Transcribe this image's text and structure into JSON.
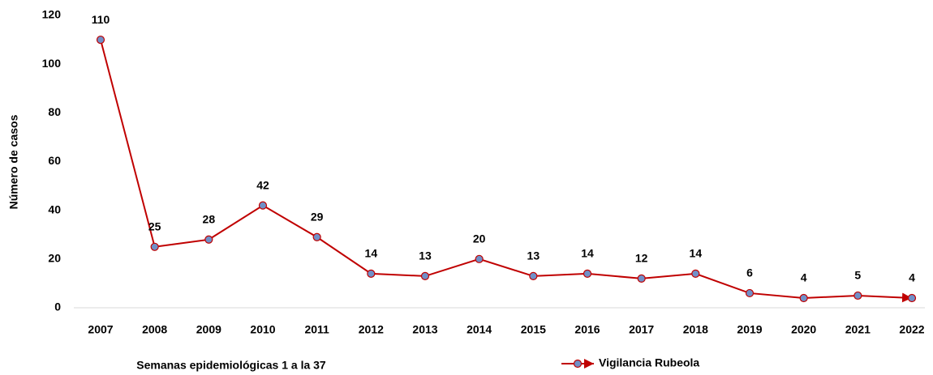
{
  "chart_data": {
    "type": "line",
    "x_label": "Semanas epidemiológicas 1 a la 37",
    "y_label": "Número de casos",
    "categories": [
      "2007",
      "2008",
      "2009",
      "2010",
      "2011",
      "2012",
      "2013",
      "2014",
      "2015",
      "2016",
      "2017",
      "2018",
      "2019",
      "2020",
      "2021",
      "2022"
    ],
    "series": [
      {
        "name": "Vigilancia Rubeola",
        "color": "#c00000",
        "marker_color": "#7090c8",
        "values": [
          110,
          25,
          28,
          42,
          29,
          14,
          13,
          20,
          13,
          14,
          12,
          14,
          6,
          4,
          5,
          4
        ]
      }
    ],
    "ylim": [
      0,
      120
    ],
    "yticks": [
      0,
      20,
      40,
      60,
      80,
      100,
      120
    ],
    "grid": false,
    "legend": "bottom"
  }
}
